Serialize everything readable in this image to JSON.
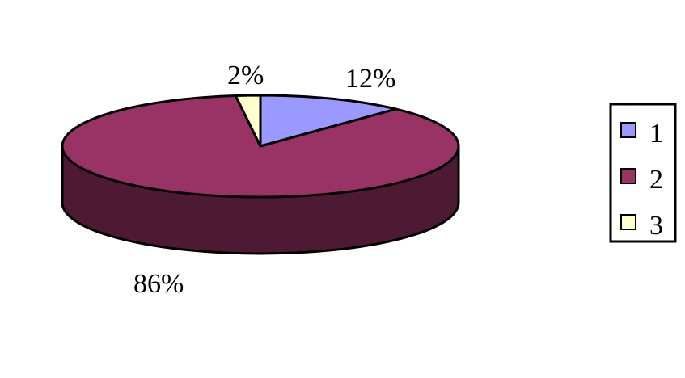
{
  "chart_data": {
    "type": "pie",
    "style": "3d",
    "categories": [
      "1",
      "2",
      "3"
    ],
    "values": [
      12,
      86,
      2
    ],
    "data_labels": [
      "12%",
      "86%",
      "2%"
    ],
    "colors": {
      "1": "#9999ff",
      "2": "#993366",
      "3": "#ffffcc",
      "side_2": "#4d1933"
    },
    "legend": {
      "position": "right",
      "entries": [
        "1",
        "2",
        "3"
      ]
    }
  }
}
